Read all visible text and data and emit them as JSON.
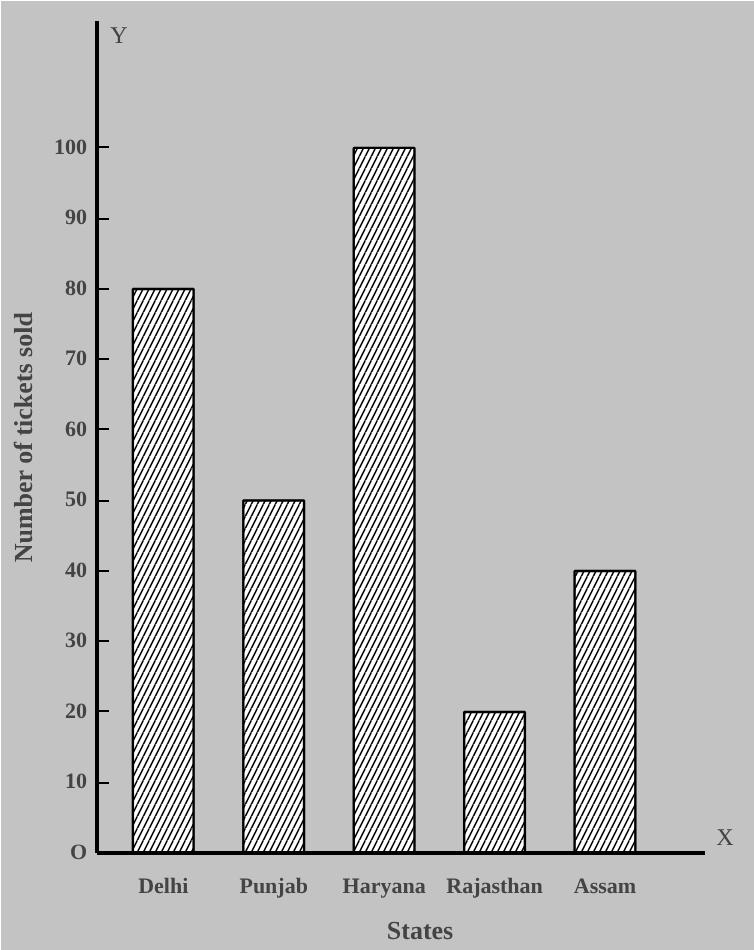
{
  "chart_data": {
    "type": "bar",
    "categories": [
      "Delhi",
      "Punjab",
      "Haryana",
      "Rajasthan",
      "Assam"
    ],
    "values": [
      80,
      50,
      100,
      20,
      40
    ],
    "color": "#ffffff",
    "xlabel": "States",
    "ylabel": "Number of tickets sold",
    "annotations": [
      "Y",
      "X"
    ],
    "ylim": [
      0,
      118
    ],
    "yticks": [
      {
        "value": 0,
        "label": "O"
      },
      10,
      20,
      30,
      40,
      50,
      60,
      70,
      80,
      90,
      100
    ],
    "grid": false
  }
}
